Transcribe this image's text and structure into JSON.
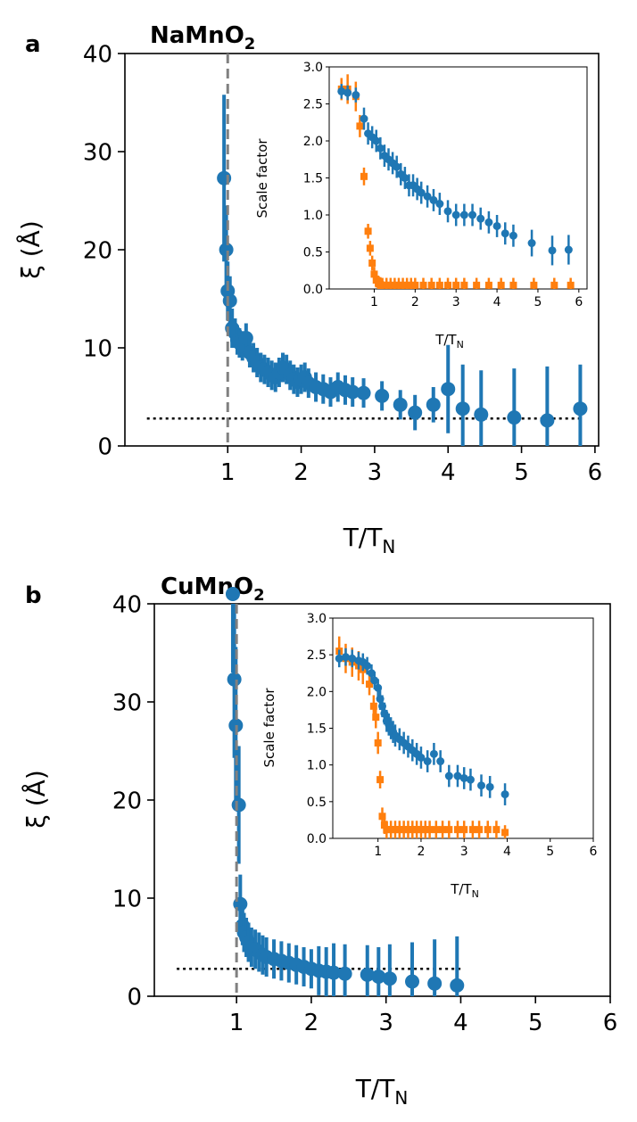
{
  "panels": [
    {
      "panel_label": "a",
      "material": "NaMnO",
      "material_sub": "2",
      "xlabel": "T/T",
      "xlabel_sub": "N",
      "ylabel": "ξ (Å)",
      "inset_xlabel": "T/T",
      "inset_xlabel_sub": "N",
      "inset_ylabel": "Scale factor"
    },
    {
      "panel_label": "b",
      "material": "CuMnO",
      "material_sub": "2",
      "xlabel": "T/T",
      "xlabel_sub": "N",
      "ylabel": "ξ (Å)",
      "inset_xlabel": "T/T",
      "inset_xlabel_sub": "N",
      "inset_ylabel": "Scale factor"
    }
  ],
  "colors": {
    "blue": "#1f77b4",
    "orange": "#ff7f0e",
    "vline": "#808080",
    "hline": "#000000"
  },
  "chart_data": [
    {
      "type": "scatter",
      "title": "NaMnO2",
      "xlabel": "T/TN",
      "ylabel": "ξ (Å)",
      "xlim": [
        -0.4,
        6.05
      ],
      "ylim": [
        0,
        40
      ],
      "xticks": [
        1,
        2,
        3,
        4,
        5,
        6
      ],
      "yticks": [
        0,
        10,
        20,
        30,
        40
      ],
      "vline_x": 1.0,
      "hline_y": 2.8,
      "hline_x": [
        -0.1,
        5.8
      ],
      "series": [
        {
          "color": "blue",
          "x": [
            0.95,
            0.98,
            1.0,
            1.03,
            1.06,
            1.1,
            1.13,
            1.16,
            1.2,
            1.25,
            1.3,
            1.35,
            1.4,
            1.45,
            1.5,
            1.55,
            1.6,
            1.65,
            1.7,
            1.75,
            1.8,
            1.85,
            1.9,
            1.95,
            2.0,
            2.05,
            2.1,
            2.2,
            2.3,
            2.4,
            2.5,
            2.6,
            2.7,
            2.85,
            3.1,
            3.35,
            3.55,
            3.8,
            4.0,
            4.2,
            4.45,
            4.9,
            5.35,
            5.8
          ],
          "y": [
            27.3,
            20.0,
            15.8,
            14.8,
            12.0,
            11.5,
            10.8,
            10.5,
            10.2,
            11.0,
            9.5,
            9.0,
            8.5,
            8.0,
            7.8,
            7.5,
            7.2,
            7.0,
            7.5,
            8.0,
            7.8,
            7.2,
            6.8,
            6.5,
            6.8,
            7.0,
            6.4,
            6.0,
            5.8,
            5.5,
            6.0,
            5.7,
            5.5,
            5.4,
            5.1,
            4.2,
            3.4,
            4.2,
            5.8,
            3.8,
            3.2,
            2.9,
            2.6,
            3.8
          ],
          "err": [
            8.5,
            4.5,
            3.0,
            2.5,
            2.0,
            1.5,
            1.5,
            1.5,
            1.5,
            1.5,
            1.5,
            1.5,
            1.5,
            1.5,
            1.5,
            1.5,
            1.5,
            1.5,
            1.5,
            1.5,
            1.5,
            1.5,
            1.5,
            1.5,
            1.5,
            1.5,
            1.5,
            1.5,
            1.5,
            1.5,
            1.5,
            1.5,
            1.5,
            1.5,
            1.5,
            1.5,
            1.8,
            1.8,
            4.5,
            4.5,
            4.5,
            5.0,
            5.5,
            4.5
          ]
        }
      ],
      "inset": {
        "type": "scatter",
        "xlabel": "T/TN",
        "ylabel": "Scale factor",
        "xlim": [
          -0.1,
          6.2
        ],
        "ylim": [
          0,
          3.0
        ],
        "xticks": [
          1,
          2,
          3,
          4,
          5,
          6
        ],
        "yticks": [
          0.0,
          0.5,
          1.0,
          1.5,
          2.0,
          2.5,
          3.0
        ],
        "yticklabels": [
          "0.0",
          "0.5",
          "1.0",
          "1.5",
          "2.0",
          "2.5",
          "3.0"
        ],
        "series": [
          {
            "color": "blue",
            "marker": "circle",
            "x": [
              0.2,
              0.35,
              0.55,
              0.75,
              0.85,
              0.95,
              1.05,
              1.15,
              1.25,
              1.35,
              1.45,
              1.55,
              1.65,
              1.75,
              1.85,
              1.95,
              2.05,
              2.15,
              2.3,
              2.45,
              2.6,
              2.8,
              3.0,
              3.2,
              3.4,
              3.6,
              3.8,
              4.0,
              4.2,
              4.4,
              4.85,
              5.35,
              5.75
            ],
            "y": [
              2.67,
              2.65,
              2.62,
              2.3,
              2.1,
              2.05,
              2.0,
              1.9,
              1.8,
              1.75,
              1.7,
              1.65,
              1.55,
              1.5,
              1.4,
              1.4,
              1.35,
              1.3,
              1.25,
              1.2,
              1.15,
              1.05,
              1.0,
              1.0,
              1.0,
              0.95,
              0.9,
              0.85,
              0.75,
              0.72,
              0.62,
              0.52,
              0.53
            ],
            "err": [
              0.1,
              0.1,
              0.1,
              0.15,
              0.15,
              0.15,
              0.15,
              0.15,
              0.15,
              0.15,
              0.15,
              0.15,
              0.15,
              0.15,
              0.15,
              0.15,
              0.15,
              0.15,
              0.15,
              0.15,
              0.15,
              0.15,
              0.15,
              0.15,
              0.15,
              0.15,
              0.15,
              0.15,
              0.15,
              0.15,
              0.18,
              0.2,
              0.2
            ]
          },
          {
            "color": "orange",
            "marker": "square",
            "x": [
              0.2,
              0.35,
              0.55,
              0.65,
              0.75,
              0.85,
              0.9,
              0.95,
              1.0,
              1.05,
              1.1,
              1.15,
              1.2,
              1.3,
              1.4,
              1.5,
              1.6,
              1.7,
              1.8,
              1.9,
              2.0,
              2.2,
              2.4,
              2.6,
              2.8,
              3.0,
              3.2,
              3.5,
              3.8,
              4.1,
              4.4,
              4.9,
              5.4,
              5.8
            ],
            "y": [
              2.7,
              2.7,
              2.6,
              2.2,
              1.52,
              0.78,
              0.55,
              0.35,
              0.2,
              0.12,
              0.08,
              0.06,
              0.05,
              0.05,
              0.05,
              0.05,
              0.05,
              0.05,
              0.05,
              0.05,
              0.05,
              0.05,
              0.05,
              0.05,
              0.05,
              0.05,
              0.05,
              0.05,
              0.05,
              0.05,
              0.05,
              0.05,
              0.05,
              0.05
            ],
            "err": [
              0.15,
              0.2,
              0.2,
              0.15,
              0.12,
              0.1,
              0.1,
              0.1,
              0.1,
              0.1,
              0.1,
              0.1,
              0.1,
              0.1,
              0.1,
              0.1,
              0.1,
              0.1,
              0.1,
              0.1,
              0.1,
              0.1,
              0.1,
              0.1,
              0.1,
              0.1,
              0.1,
              0.1,
              0.1,
              0.1,
              0.1,
              0.1,
              0.1,
              0.1
            ]
          }
        ]
      }
    },
    {
      "type": "scatter",
      "title": "CuMnO2",
      "xlabel": "T/TN",
      "ylabel": "ξ (Å)",
      "xlim": [
        -0.1,
        6.0
      ],
      "ylim": [
        0,
        40
      ],
      "xticks": [
        1,
        2,
        3,
        4,
        5,
        6
      ],
      "yticks": [
        0,
        10,
        20,
        30,
        40
      ],
      "vline_x": 1.0,
      "hline_y": 2.8,
      "hline_x": [
        0.2,
        4.0
      ],
      "series": [
        {
          "color": "blue",
          "x": [
            0.95,
            0.97,
            0.99,
            1.03,
            1.05,
            1.08,
            1.1,
            1.13,
            1.16,
            1.2,
            1.25,
            1.3,
            1.35,
            1.4,
            1.5,
            1.6,
            1.7,
            1.8,
            1.9,
            2.0,
            2.1,
            2.2,
            2.3,
            2.45,
            2.75,
            2.9,
            3.05,
            3.35,
            3.65,
            3.95
          ],
          "y": [
            41.0,
            32.3,
            27.6,
            19.5,
            9.4,
            7.2,
            6.5,
            6.0,
            5.5,
            5.0,
            4.8,
            4.5,
            4.2,
            4.0,
            3.8,
            3.6,
            3.4,
            3.2,
            3.0,
            2.8,
            2.6,
            2.5,
            2.4,
            2.3,
            2.2,
            2.0,
            1.8,
            1.5,
            1.3,
            1.1
          ],
          "err": [
            8.0,
            8.0,
            8.0,
            6.0,
            3.0,
            2.0,
            2.0,
            2.0,
            2.0,
            2.0,
            2.0,
            2.0,
            2.0,
            2.0,
            2.0,
            2.0,
            2.0,
            2.0,
            2.0,
            2.0,
            2.5,
            2.5,
            3.0,
            3.0,
            3.0,
            3.0,
            3.5,
            4.0,
            4.5,
            5.0
          ]
        }
      ],
      "inset": {
        "type": "scatter",
        "xlabel": "T/TN",
        "ylabel": "Scale factor",
        "xlim": [
          -0.05,
          6.0
        ],
        "ylim": [
          0,
          3.0
        ],
        "xticks": [
          1,
          2,
          3,
          4,
          5,
          6
        ],
        "yticks": [
          0.0,
          0.5,
          1.0,
          1.5,
          2.0,
          2.5,
          3.0
        ],
        "yticklabels": [
          "0.0",
          "0.5",
          "1.0",
          "1.5",
          "2.0",
          "2.5",
          "3.0"
        ],
        "series": [
          {
            "color": "blue",
            "marker": "circle",
            "x": [
              0.1,
              0.25,
              0.4,
              0.55,
              0.65,
              0.75,
              0.85,
              0.92,
              1.0,
              1.05,
              1.1,
              1.15,
              1.2,
              1.25,
              1.3,
              1.35,
              1.4,
              1.5,
              1.6,
              1.7,
              1.8,
              1.9,
              2.0,
              2.15,
              2.3,
              2.45,
              2.65,
              2.85,
              3.0,
              3.15,
              3.4,
              3.6,
              3.95
            ],
            "y": [
              2.45,
              2.47,
              2.45,
              2.42,
              2.4,
              2.35,
              2.25,
              2.15,
              2.05,
              1.9,
              1.8,
              1.7,
              1.6,
              1.55,
              1.5,
              1.45,
              1.4,
              1.35,
              1.3,
              1.25,
              1.2,
              1.15,
              1.1,
              1.05,
              1.15,
              1.05,
              0.85,
              0.85,
              0.82,
              0.8,
              0.72,
              0.7,
              0.6
            ],
            "err": [
              0.12,
              0.12,
              0.12,
              0.12,
              0.12,
              0.12,
              0.12,
              0.12,
              0.12,
              0.15,
              0.15,
              0.15,
              0.15,
              0.15,
              0.15,
              0.15,
              0.15,
              0.15,
              0.15,
              0.15,
              0.15,
              0.15,
              0.15,
              0.15,
              0.15,
              0.15,
              0.15,
              0.15,
              0.15,
              0.15,
              0.15,
              0.15,
              0.15
            ]
          },
          {
            "color": "orange",
            "marker": "square",
            "x": [
              0.1,
              0.25,
              0.4,
              0.55,
              0.65,
              0.8,
              0.9,
              0.95,
              1.0,
              1.05,
              1.1,
              1.15,
              1.2,
              1.3,
              1.4,
              1.5,
              1.6,
              1.7,
              1.8,
              1.9,
              2.0,
              2.1,
              2.2,
              2.35,
              2.5,
              2.65,
              2.85,
              3.0,
              3.2,
              3.35,
              3.55,
              3.75,
              3.95
            ],
            "y": [
              2.55,
              2.45,
              2.4,
              2.35,
              2.3,
              2.1,
              1.8,
              1.65,
              1.3,
              0.8,
              0.3,
              0.18,
              0.12,
              0.12,
              0.12,
              0.12,
              0.12,
              0.12,
              0.12,
              0.12,
              0.12,
              0.12,
              0.12,
              0.12,
              0.12,
              0.12,
              0.12,
              0.12,
              0.12,
              0.12,
              0.12,
              0.12,
              0.08
            ],
            "err": [
              0.2,
              0.2,
              0.2,
              0.2,
              0.2,
              0.15,
              0.15,
              0.15,
              0.15,
              0.12,
              0.12,
              0.12,
              0.12,
              0.12,
              0.12,
              0.12,
              0.12,
              0.12,
              0.12,
              0.12,
              0.12,
              0.12,
              0.12,
              0.12,
              0.12,
              0.12,
              0.12,
              0.12,
              0.12,
              0.12,
              0.12,
              0.12,
              0.1
            ]
          }
        ]
      }
    }
  ]
}
